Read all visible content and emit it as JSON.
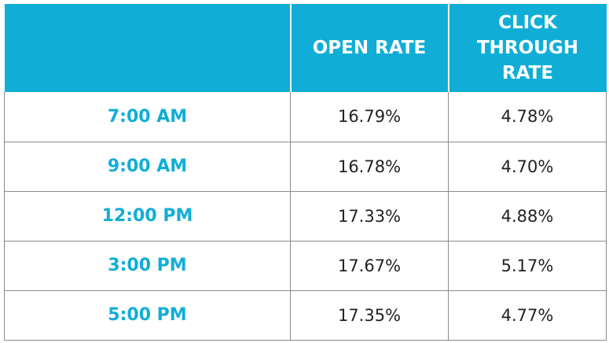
{
  "colors": {
    "header_bg": "#10aed6",
    "header_text": "#ffffff",
    "time_text": "#10aed6",
    "value_text": "#222222",
    "grid_line": "#8a8a8a"
  },
  "chart_data": {
    "type": "table",
    "columns": [
      "",
      "OPEN RATE",
      "CLICK THROUGH RATE"
    ],
    "header_lines": {
      "open_rate": [
        "OPEN RATE"
      ],
      "click_through_rate": [
        "CLICK",
        "THROUGH",
        "RATE"
      ]
    },
    "rows": [
      {
        "time": "7:00 AM",
        "open_rate": "16.79%",
        "click_through_rate": "4.78%"
      },
      {
        "time": "9:00 AM",
        "open_rate": "16.78%",
        "click_through_rate": "4.70%"
      },
      {
        "time": "12:00 PM",
        "open_rate": "17.33%",
        "click_through_rate": "4.88%"
      },
      {
        "time": "3:00 PM",
        "open_rate": "17.67%",
        "click_through_rate": "5.17%"
      },
      {
        "time": "5:00 PM",
        "open_rate": "17.35%",
        "click_through_rate": "4.77%"
      }
    ]
  }
}
